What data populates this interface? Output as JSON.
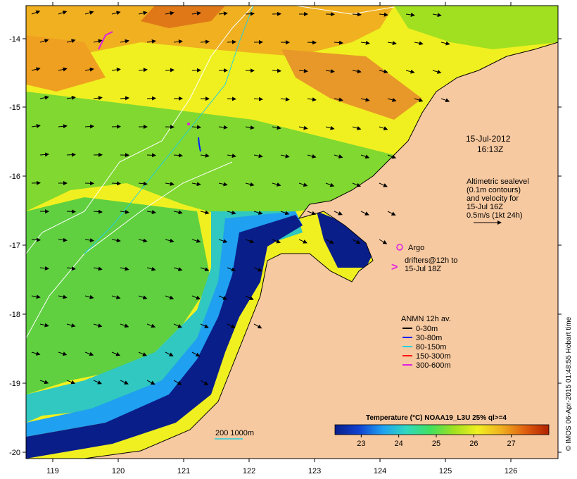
{
  "colors": {
    "land": "#f7c9a0",
    "deep_blue": "#0a1e8a",
    "accent_magenta": "#e020e0"
  },
  "axes": {
    "x_ticks": [
      "119",
      "120",
      "121",
      "122",
      "123",
      "124",
      "125",
      "126"
    ],
    "y_ticks": [
      "-14",
      "-15",
      "-16",
      "-17",
      "-18",
      "-19",
      "-20"
    ]
  },
  "timestamp": {
    "date": "15-Jul-2012",
    "time": "16:13Z"
  },
  "sealevel_note": {
    "lines": [
      "Altimetric sealevel",
      "(0.1m contours)",
      "and velocity for",
      "15-Jul 16Z",
      "0.5m/s (1kt 24h)"
    ]
  },
  "legend": {
    "argo_label": "Argo",
    "drifter_marker": ">",
    "drifter_lines": [
      "drifters@12h to",
      "15-Jul 18Z"
    ],
    "anmn_title": "ANMN 12h av.",
    "anmn_items": [
      {
        "label": "0-30m",
        "color": "#000000"
      },
      {
        "label": "30-80m",
        "color": "#0020ff"
      },
      {
        "label": "80-150m",
        "color": "#20d0e0"
      },
      {
        "label": "150-300m",
        "color": "#ff1010"
      },
      {
        "label": "300-600m",
        "color": "#e020e0"
      }
    ]
  },
  "scale_label": "200  1000m",
  "colorbar": {
    "title": "Temperature (°C) NOAA19_L3U 25% ql>=4",
    "ticks": [
      "23",
      "24",
      "25",
      "26",
      "27"
    ],
    "min": 22.3,
    "max": 28.0,
    "stops": [
      "#0a1e8a",
      "#1040d0",
      "#20a0f0",
      "#30d8c0",
      "#40e060",
      "#a0e020",
      "#f0f020",
      "#f0b020",
      "#e06010",
      "#b02000"
    ]
  },
  "credit": "© IMOS 06-Apr-2015 01:48:55 Hobart time"
}
